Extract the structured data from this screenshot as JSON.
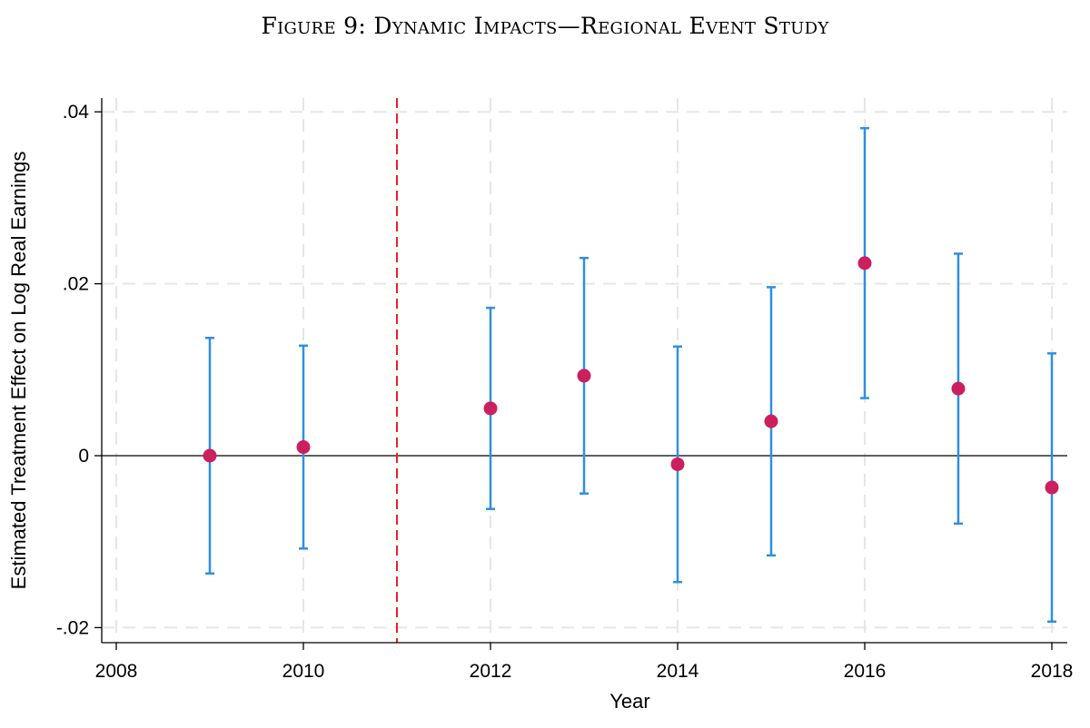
{
  "figure": {
    "title": "Figure 9: Dynamic Impacts—Regional Event Study"
  },
  "chart_data": {
    "type": "scatter",
    "title": "",
    "xlabel": "Year",
    "ylabel": "Estimated Treatment Effect on Log Real Earnings",
    "xlim": [
      2008,
      2018
    ],
    "ylim": [
      -0.022,
      0.042
    ],
    "x_ticks": [
      {
        "value": 2008,
        "label": "2008"
      },
      {
        "value": 2010,
        "label": "2010"
      },
      {
        "value": 2012,
        "label": "2012"
      },
      {
        "value": 2014,
        "label": "2014"
      },
      {
        "value": 2016,
        "label": "2016"
      },
      {
        "value": 2018,
        "label": "2018"
      }
    ],
    "y_ticks": [
      {
        "value": -0.02,
        "label": "-.02"
      },
      {
        "value": 0,
        "label": "0"
      },
      {
        "value": 0.02,
        "label": ".02"
      },
      {
        "value": 0.04,
        "label": ".04"
      }
    ],
    "grid": true,
    "reference_lines": {
      "horizontal_y": 0,
      "vertical_x": 2011,
      "vertical_style": "dashed",
      "vertical_color": "#e8202a"
    },
    "series": [
      {
        "x": [
          2009,
          2010,
          2012,
          2013,
          2014,
          2015,
          2016,
          2017,
          2018
        ],
        "y": [
          0.0,
          0.001,
          0.0055,
          0.0093,
          -0.001,
          0.004,
          0.0224,
          0.0078,
          -0.0037
        ],
        "ci_low": [
          -0.0137,
          -0.0108,
          -0.0062,
          -0.0044,
          -0.0147,
          -0.0116,
          0.0067,
          -0.0079,
          -0.0193
        ],
        "ci_high": [
          0.0137,
          0.0128,
          0.0172,
          0.023,
          0.0127,
          0.0196,
          0.0381,
          0.0235,
          0.0119
        ],
        "point_color": "#cc1f5e",
        "ci_color": "#2f8fe0"
      }
    ]
  }
}
